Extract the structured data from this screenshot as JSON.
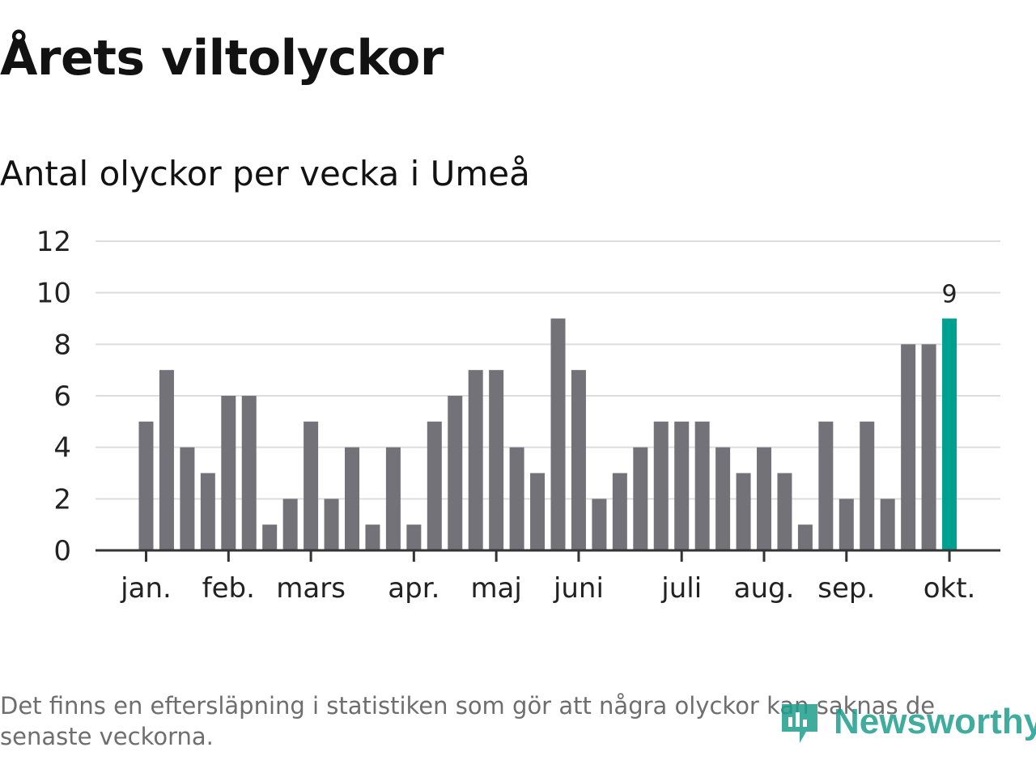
{
  "title": "Årets viltolyckor",
  "subtitle": "Antal olyckor per vecka i Umeå",
  "footnote": "Det finns en eftersläpning i statistiken som gör att några olyckor kan saknas de senaste veckorna.",
  "brand": {
    "name": "Newsworthy",
    "icon": "newsworthy-logo-icon"
  },
  "colors": {
    "bar": "#737278",
    "highlight": "#00a091",
    "grid": "#dddddd",
    "axis": "#333333",
    "brand": "#1f9e8e"
  },
  "chart_data": {
    "type": "bar",
    "title": "Antal olyckor per vecka i Umeå",
    "xlabel": "",
    "ylabel": "",
    "ylim": [
      0,
      12
    ],
    "yticks": [
      0,
      2,
      4,
      6,
      8,
      10,
      12
    ],
    "grid": true,
    "weeks": [
      1,
      2,
      3,
      4,
      5,
      6,
      7,
      8,
      9,
      10,
      11,
      12,
      13,
      14,
      15,
      16,
      17,
      18,
      19,
      20,
      21,
      22,
      23,
      24,
      25,
      26,
      27,
      28,
      29,
      30,
      31,
      32,
      33,
      34,
      35,
      36,
      37,
      38,
      39,
      40
    ],
    "values": [
      5,
      7,
      4,
      3,
      6,
      6,
      1,
      2,
      5,
      2,
      4,
      1,
      4,
      1,
      5,
      6,
      7,
      7,
      4,
      3,
      9,
      7,
      2,
      3,
      4,
      5,
      5,
      5,
      4,
      3,
      4,
      3,
      1,
      5,
      2,
      5,
      2,
      8,
      8,
      9
    ],
    "highlight_index": 39,
    "highlight_label": "9",
    "month_ticks": [
      {
        "label": "jan.",
        "week": 1
      },
      {
        "label": "feb.",
        "week": 5
      },
      {
        "label": "mars",
        "week": 9
      },
      {
        "label": "apr.",
        "week": 14
      },
      {
        "label": "maj",
        "week": 18
      },
      {
        "label": "juni",
        "week": 22
      },
      {
        "label": "juli",
        "week": 27
      },
      {
        "label": "aug.",
        "week": 31
      },
      {
        "label": "sep.",
        "week": 35
      },
      {
        "label": "okt.",
        "week": 40
      }
    ]
  }
}
